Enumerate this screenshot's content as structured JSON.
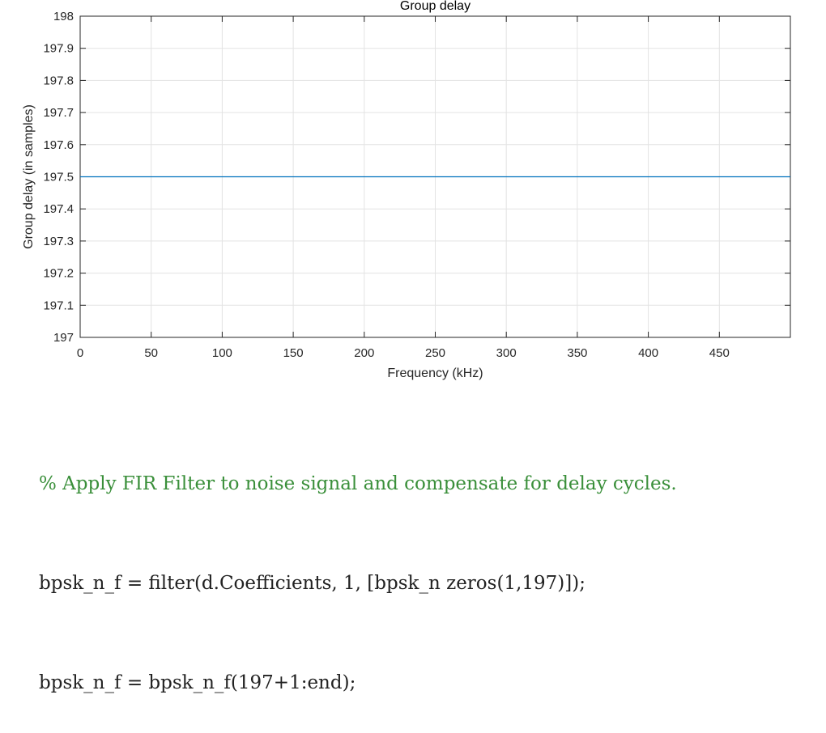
{
  "chart_data": {
    "type": "line",
    "title": "Group delay",
    "xlabel": "Frequency (kHz)",
    "ylabel": "Group delay (in samples)",
    "xlim": [
      0,
      500
    ],
    "ylim": [
      197,
      198
    ],
    "x_ticks": [
      0,
      50,
      100,
      150,
      200,
      250,
      300,
      350,
      400,
      450
    ],
    "y_ticks": [
      197,
      197.1,
      197.2,
      197.3,
      197.4,
      197.5,
      197.6,
      197.7,
      197.8,
      197.9,
      198
    ],
    "y_tick_labels": [
      "197",
      "197.1",
      "197.2",
      "197.3",
      "197.4",
      "197.5",
      "197.6",
      "197.7",
      "197.8",
      "197.9",
      "198"
    ],
    "grid": true,
    "series": [
      {
        "x": [
          0,
          500
        ],
        "y": [
          197.5,
          197.5
        ],
        "color": "#0072BD"
      }
    ]
  },
  "code": {
    "lines": [
      {
        "text": "% Apply FIR Filter to noise signal and compensate for delay cycles.",
        "kind": "comment"
      },
      {
        "text": "bpsk_n_f = filter(d.Coefficients, 1, [bpsk_n zeros(1,197)]);",
        "kind": "code"
      },
      {
        "text": "bpsk_n_f = bpsk_n_f(197+1:end);",
        "kind": "code"
      }
    ]
  }
}
